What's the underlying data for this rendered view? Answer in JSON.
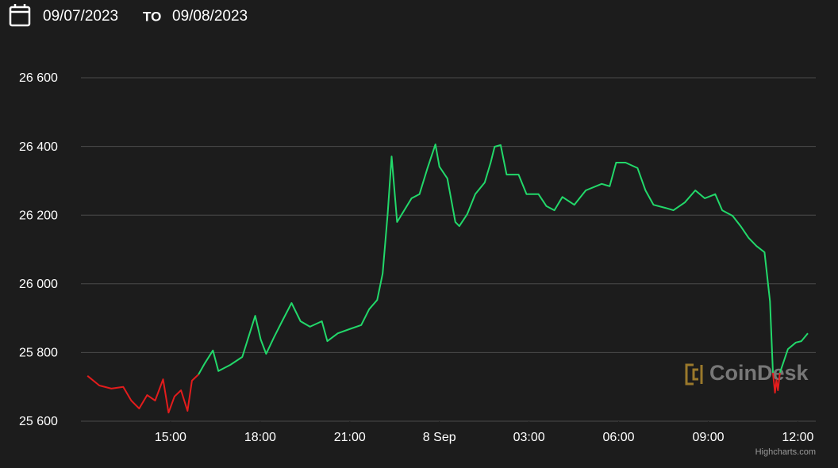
{
  "header": {
    "from": "09/07/2023",
    "separator": "TO",
    "to": "09/08/2023"
  },
  "watermark": "CoinDesk",
  "credits": "Highcharts.com",
  "chart_data": {
    "type": "line",
    "x": [
      "2023-09-07T12:13",
      "2023-09-07T12:37",
      "2023-09-07T13:01",
      "2023-09-07T13:25",
      "2023-09-07T13:41",
      "2023-09-07T13:57",
      "2023-09-07T14:13",
      "2023-09-07T14:29",
      "2023-09-07T14:45",
      "2023-09-07T14:56",
      "2023-09-07T15:08",
      "2023-09-07T15:21",
      "2023-09-07T15:34",
      "2023-09-07T15:43",
      "2023-09-07T15:56",
      "2023-09-07T16:09",
      "2023-09-07T16:25",
      "2023-09-07T16:36",
      "2023-09-07T17:00",
      "2023-09-07T17:24",
      "2023-09-07T17:35",
      "2023-09-07T17:50",
      "2023-09-07T18:01",
      "2023-09-07T18:12",
      "2023-09-07T18:28",
      "2023-09-07T18:44",
      "2023-09-07T19:03",
      "2023-09-07T19:21",
      "2023-09-07T19:40",
      "2023-09-07T20:04",
      "2023-09-07T20:15",
      "2023-09-07T20:36",
      "2023-09-07T20:59",
      "2023-09-07T21:23",
      "2023-09-07T21:39",
      "2023-09-07T21:55",
      "2023-09-07T22:06",
      "2023-09-07T22:16",
      "2023-09-07T22:24",
      "2023-09-07T22:35",
      "2023-09-07T23:04",
      "2023-09-07T23:20",
      "2023-09-07T23:36",
      "2023-09-07T23:52",
      "2023-09-08T00:00",
      "2023-09-08T00:16",
      "2023-09-08T00:32",
      "2023-09-08T00:40",
      "2023-09-08T00:56",
      "2023-09-08T01:12",
      "2023-09-08T01:31",
      "2023-09-08T01:43",
      "2023-09-08T01:51",
      "2023-09-08T02:03",
      "2023-09-08T02:15",
      "2023-09-08T02:39",
      "2023-09-08T02:55",
      "2023-09-08T03:19",
      "2023-09-08T03:35",
      "2023-09-08T03:51",
      "2023-09-08T04:07",
      "2023-09-08T04:31",
      "2023-09-08T04:54",
      "2023-09-08T05:26",
      "2023-09-08T05:42",
      "2023-09-08T05:55",
      "2023-09-08T06:14",
      "2023-09-08T06:38",
      "2023-09-08T06:54",
      "2023-09-08T07:10",
      "2023-09-08T07:34",
      "2023-09-08T07:50",
      "2023-09-08T08:13",
      "2023-09-08T08:34",
      "2023-09-08T08:53",
      "2023-09-08T09:14",
      "2023-09-08T09:28",
      "2023-09-08T09:49",
      "2023-09-08T10:05",
      "2023-09-08T10:21",
      "2023-09-08T10:37",
      "2023-09-08T10:53",
      "2023-09-08T11:04",
      "2023-09-08T11:10",
      "2023-09-08T11:14",
      "2023-09-08T11:17",
      "2023-09-08T11:20",
      "2023-09-08T11:24",
      "2023-09-08T11:40",
      "2023-09-08T11:56",
      "2023-09-08T12:07",
      "2023-09-08T12:20"
    ],
    "series": [
      {
        "color": "#e31c1c",
        "values": [
          25732,
          25704,
          25695,
          25700,
          25660,
          25637,
          25676,
          25660,
          25722,
          25625,
          25672,
          25690,
          25630,
          25718,
          25736,
          null,
          null,
          null,
          null,
          null,
          null,
          null,
          null,
          null,
          null,
          null,
          null,
          null,
          null,
          null,
          null,
          null,
          null,
          null,
          null,
          null,
          null,
          null,
          null,
          null,
          null,
          null,
          null,
          null,
          null,
          null,
          null,
          null,
          null,
          null,
          null,
          null,
          null,
          null,
          null,
          null,
          null,
          null,
          null,
          null,
          null,
          null,
          null,
          null,
          null,
          null,
          null,
          null,
          null,
          null,
          null,
          null,
          null,
          null,
          null,
          null,
          null,
          null,
          null,
          null,
          null,
          null,
          null,
          25741,
          25683,
          25720,
          25690,
          25741,
          null,
          null,
          null,
          null
        ]
      },
      {
        "color": "#22d86a",
        "values": [
          null,
          null,
          null,
          null,
          null,
          null,
          null,
          null,
          null,
          null,
          null,
          null,
          null,
          null,
          25736,
          25769,
          25806,
          25746,
          25764,
          25787,
          25838,
          25907,
          25838,
          25796,
          25845,
          25891,
          25944,
          25891,
          25875,
          25891,
          25833,
          25856,
          25868,
          25880,
          25926,
          25953,
          26030,
          26203,
          26371,
          26180,
          26249,
          26261,
          26337,
          26406,
          26341,
          26307,
          26180,
          26168,
          26203,
          26261,
          26295,
          26353,
          26399,
          26404,
          26318,
          26318,
          26261,
          26261,
          26226,
          26214,
          26253,
          26230,
          26272,
          26291,
          26284,
          26353,
          26353,
          26337,
          26272,
          26230,
          26221,
          26214,
          26237,
          26272,
          26249,
          26261,
          26214,
          26198,
          26168,
          26134,
          26110,
          26092,
          25949,
          25741,
          null,
          null,
          null,
          25741,
          25810,
          25829,
          25833,
          25856
        ]
      }
    ],
    "xlim": [
      "2023-09-07T12:00",
      "2023-09-08T12:36"
    ],
    "xticks": [
      {
        "value": "2023-09-07T15:00",
        "label": "15:00"
      },
      {
        "value": "2023-09-07T18:00",
        "label": "18:00"
      },
      {
        "value": "2023-09-07T21:00",
        "label": "21:00"
      },
      {
        "value": "2023-09-08T00:00",
        "label": "8 Sep"
      },
      {
        "value": "2023-09-08T03:00",
        "label": "03:00"
      },
      {
        "value": "2023-09-08T06:00",
        "label": "06:00"
      },
      {
        "value": "2023-09-08T09:00",
        "label": "09:00"
      },
      {
        "value": "2023-09-08T12:00",
        "label": "12:00"
      }
    ],
    "ylim": [
      25600,
      26600
    ],
    "yticks": [
      {
        "value": 25600,
        "label": "25 600"
      },
      {
        "value": 25800,
        "label": "25 800"
      },
      {
        "value": 26000,
        "label": "26 000"
      },
      {
        "value": 26200,
        "label": "26 200"
      },
      {
        "value": 26400,
        "label": "26 400"
      },
      {
        "value": 26600,
        "label": "26 600"
      }
    ],
    "grid": true
  }
}
